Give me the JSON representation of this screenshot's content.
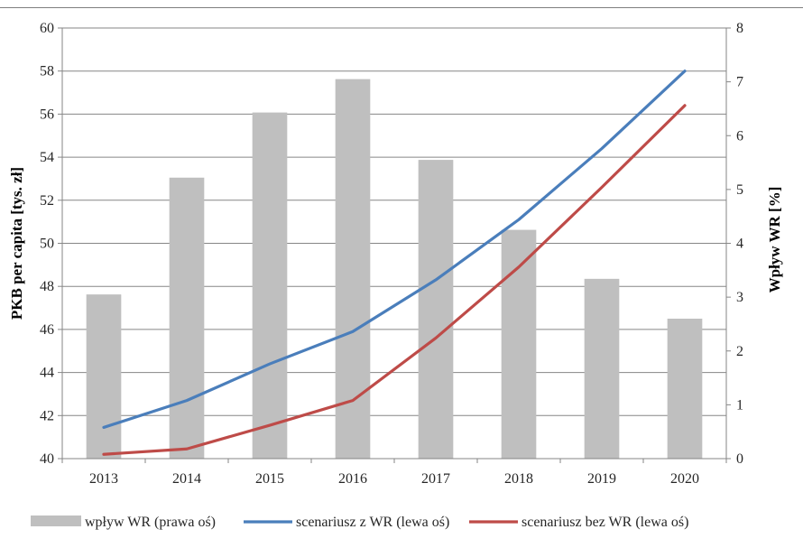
{
  "chart_data": {
    "type": "bar+line",
    "categories": [
      "2013",
      "2014",
      "2015",
      "2016",
      "2017",
      "2018",
      "2019",
      "2020"
    ],
    "left_axis": {
      "label": "PKB per capita [tys. zł]",
      "range": [
        40,
        60
      ],
      "ticks": [
        "40",
        "42",
        "44",
        "46",
        "48",
        "50",
        "52",
        "54",
        "56",
        "58",
        "60"
      ]
    },
    "right_axis": {
      "label": "Wpływ WR [%]",
      "range": [
        0,
        8
      ],
      "ticks": [
        "0",
        "1",
        "2",
        "3",
        "4",
        "5",
        "6",
        "7",
        "8"
      ]
    },
    "grid": true,
    "legend_position": "bottom",
    "series": [
      {
        "name": "wpływ WR (prawa oś)",
        "type": "bar",
        "axis": "right",
        "color": "#bfbfbf",
        "values": [
          3.05,
          5.22,
          6.43,
          7.05,
          5.55,
          4.25,
          3.34,
          2.6
        ]
      },
      {
        "name": "scenariusz z WR (lewa oś)",
        "type": "line",
        "axis": "left",
        "color": "#4a7ebb",
        "values": [
          41.45,
          42.7,
          44.4,
          45.9,
          48.3,
          51.1,
          54.4,
          58.0
        ]
      },
      {
        "name": "scenariusz bez WR (lewa oś)",
        "type": "line",
        "axis": "left",
        "color": "#be4b48",
        "values": [
          40.2,
          40.45,
          41.55,
          42.7,
          45.6,
          48.9,
          52.6,
          56.4
        ]
      }
    ]
  }
}
